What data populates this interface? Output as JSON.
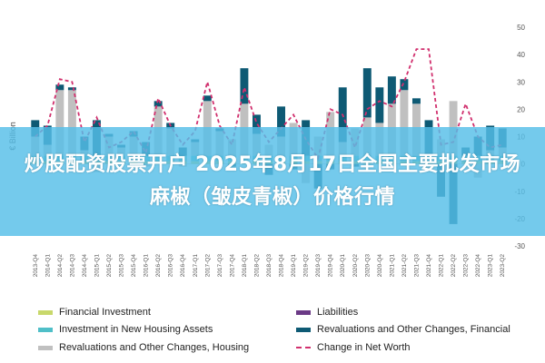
{
  "banner": {
    "title": "炒股配资股票开户 2025年8月17日全国主要批发市场麻椒（皱皮青椒）价格行情"
  },
  "chart_data": {
    "type": "bar",
    "ylabel": "€ Billion",
    "ylim": [
      -30,
      50
    ],
    "yticks": [
      -30,
      -20,
      -10,
      0,
      10,
      20,
      30,
      40,
      50
    ],
    "categories": [
      "2013-Q4",
      "2014-Q1",
      "2014-Q2",
      "2014-Q3",
      "2014-Q4",
      "2015-Q1",
      "2015-Q2",
      "2015-Q3",
      "2015-Q4",
      "2016-Q1",
      "2016-Q2",
      "2016-Q3",
      "2016-Q4",
      "2017-Q1",
      "2017-Q2",
      "2017-Q3",
      "2017-Q4",
      "2018-Q1",
      "2018-Q2",
      "2018-Q3",
      "2018-Q4",
      "2019-Q1",
      "2019-Q2",
      "2019-Q3",
      "2019-Q4",
      "2020-Q1",
      "2020-Q2",
      "2020-Q3",
      "2020-Q4",
      "2021-Q1",
      "2021-Q2",
      "2021-Q3",
      "2021-Q4",
      "2022-Q1",
      "2022-Q2",
      "2022-Q3",
      "2022-Q4",
      "2023-Q1",
      "2023-Q2"
    ],
    "series": [
      {
        "name": "Financial Investment",
        "color": "#c8d86b",
        "values": [
          1,
          1,
          1,
          1,
          1,
          1,
          1,
          1,
          1,
          1,
          1,
          1,
          1,
          1,
          1,
          1,
          1,
          1,
          1,
          1,
          1,
          1,
          1,
          1,
          1,
          1,
          1,
          1,
          1,
          1,
          1,
          1,
          1,
          1,
          1,
          1,
          1,
          1,
          1
        ]
      },
      {
        "name": "Investment in New Housing Assets",
        "color": "#4fbfc8",
        "values": [
          2,
          2,
          2,
          2,
          2,
          2,
          2,
          2,
          2,
          2,
          2,
          2,
          2,
          2,
          2,
          2,
          2,
          2,
          2,
          2,
          2,
          2,
          2,
          2,
          2,
          2,
          2,
          2,
          2,
          2,
          2,
          2,
          2,
          2,
          2,
          2,
          2,
          2,
          2
        ]
      },
      {
        "name": "Revaluations and Other Changes, Housing",
        "color": "#c0c0c0",
        "values": [
          7,
          4,
          24,
          24,
          2,
          -3,
          7,
          3,
          7,
          -1,
          18,
          10,
          -1,
          5,
          20,
          9,
          6,
          19,
          8,
          4,
          7,
          12,
          -7,
          7,
          16,
          5,
          10,
          14,
          12,
          19,
          24,
          19,
          -3,
          6,
          20,
          0,
          -5,
          2,
          3
        ]
      },
      {
        "name": "Liabilities",
        "color": "#6b3a86",
        "values": [
          0,
          0,
          0,
          0,
          0,
          0,
          0,
          0,
          0,
          0,
          0,
          0,
          0,
          0,
          0,
          0,
          0,
          0,
          0,
          0,
          0,
          0,
          0,
          0,
          0,
          0,
          0,
          0,
          0,
          0,
          0,
          0,
          0,
          0,
          0,
          0,
          0,
          0,
          0
        ]
      },
      {
        "name": "Revaluations and Other Changes, Financial",
        "color": "#0e5a74",
        "values": [
          6,
          7,
          2,
          1,
          5,
          13,
          1,
          1,
          2,
          5,
          2,
          2,
          3,
          1,
          2,
          1,
          -1,
          13,
          7,
          -4,
          11,
          -2,
          13,
          -9,
          -2,
          20,
          -1,
          18,
          13,
          10,
          4,
          2,
          13,
          -12,
          -22,
          3,
          7,
          9,
          7
        ]
      },
      {
        "name": "Change in Net Worth",
        "color": "#d1306e",
        "line": true,
        "values": [
          10,
          14,
          31,
          30,
          8,
          17,
          6,
          8,
          12,
          4,
          24,
          14,
          7,
          12,
          30,
          14,
          7,
          28,
          15,
          8,
          13,
          18,
          9,
          2,
          20,
          18,
          6,
          20,
          23,
          21,
          30,
          42,
          42,
          7,
          8,
          22,
          10,
          6,
          7
        ]
      }
    ],
    "legend_position": "bottom",
    "grid": false
  }
}
